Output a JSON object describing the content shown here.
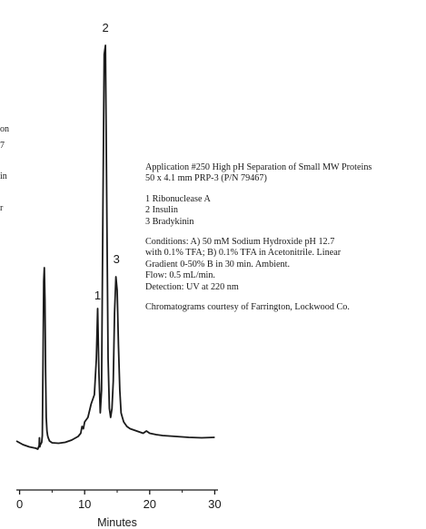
{
  "fragments": [
    "on",
    "7",
    "in",
    "r"
  ],
  "info": {
    "title": "Application #250 High pH Separation of Small MW Proteins",
    "column": "50 x 4.1 mm PRP-3 (P/N 79467)",
    "peaks": [
      "1 Ribonuclease A",
      "2 Insulin",
      "3 Bradykinin"
    ],
    "conditions": [
      "Conditions: A) 50 mM Sodium Hydroxide pH 12.7",
      "with 0.1% TFA; B) 0.1% TFA in Acetonitrile. Linear",
      "Gradient 0-50% B in 30 min. Ambient.",
      "Flow: 0.5 mL/min.",
      "Detection: UV at 220 nm"
    ],
    "credit": "Chromatograms courtesy of Farrington, Lockwood Co."
  },
  "chart_data": {
    "type": "line",
    "title": "",
    "xlabel": "Minutes",
    "ylabel": "",
    "xlim": [
      -0.5,
      30.5
    ],
    "ylim": [
      0,
      100
    ],
    "x_ticks": [
      0,
      10,
      20,
      30
    ],
    "grid": false,
    "peak_labels": [
      {
        "text": "1",
        "x": 12.0,
        "y": 38
      },
      {
        "text": "2",
        "x": 13.2,
        "y": 97
      },
      {
        "text": "3",
        "x": 14.9,
        "y": 46
      }
    ],
    "series": [
      {
        "name": "",
        "x": [
          -0.5,
          0.5,
          1.5,
          2.5,
          2.8,
          3.0,
          3.05,
          3.1,
          3.2,
          3.4,
          3.5,
          3.6,
          3.7,
          3.8,
          3.9,
          4.0,
          4.1,
          4.2,
          4.3,
          4.4,
          4.6,
          5.0,
          6.0,
          7.0,
          8.0,
          9.0,
          9.4,
          9.6,
          9.8,
          10.0,
          10.5,
          11.0,
          11.5,
          11.8,
          12.0,
          12.2,
          12.4,
          12.6,
          12.8,
          13.0,
          13.2,
          13.4,
          13.6,
          13.8,
          14.0,
          14.2,
          14.4,
          14.6,
          14.8,
          15.0,
          15.2,
          15.4,
          15.6,
          15.8,
          16.0,
          16.5,
          17.0,
          18.0,
          19.0,
          19.5,
          20.0,
          21.0,
          22.0,
          24.0,
          26.0,
          28.0,
          30.0
        ],
        "y": [
          6.8,
          6.0,
          5.5,
          5.2,
          5.0,
          5.8,
          7.5,
          5.5,
          6.0,
          6.5,
          8.0,
          25.0,
          42.0,
          45.0,
          38.0,
          22.0,
          12.0,
          9.0,
          8.0,
          7.5,
          6.8,
          6.4,
          6.3,
          6.5,
          7.0,
          7.8,
          8.5,
          10.0,
          9.5,
          11.0,
          12.0,
          15.0,
          17.0,
          25.0,
          36.0,
          22.0,
          13.0,
          18.0,
          55.0,
          92.0,
          94.0,
          60.0,
          25.0,
          14.0,
          12.0,
          14.0,
          20.0,
          35.0,
          43.0,
          40.0,
          28.0,
          18.0,
          13.0,
          12.0,
          11.0,
          10.0,
          9.5,
          9.0,
          8.5,
          9.0,
          8.5,
          8.2,
          8.0,
          7.8,
          7.6,
          7.5,
          7.6
        ]
      }
    ]
  }
}
